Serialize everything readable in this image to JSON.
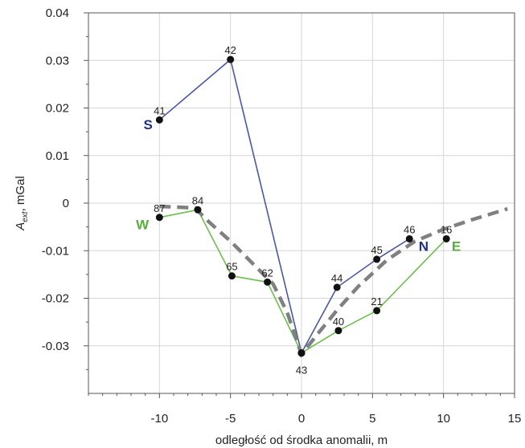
{
  "chart_data": {
    "type": "line",
    "xlabel": "odległość od środka anomalii,  m",
    "ylabel_main": "A",
    "ylabel_sub": "ext",
    "ylabel_unit": "mGal",
    "xlim": [
      -15,
      15
    ],
    "ylim": [
      -0.04,
      0.04
    ],
    "xticks": [
      -10,
      -5,
      0,
      5,
      10,
      15
    ],
    "xtick_labels": [
      "-10",
      "-5",
      "0",
      "5",
      "10",
      "15"
    ],
    "yticks": [
      0.04,
      0.03,
      0.02,
      0.01,
      0,
      -0.01,
      -0.02,
      -0.03
    ],
    "ytick_labels": [
      "0.04",
      "0.03",
      "0.02",
      "0.01",
      "0",
      "-0.01",
      "-0.02",
      "-0.03"
    ],
    "grid": true,
    "colors": {
      "sn": "#4a57a6",
      "we": "#6cbf4b",
      "model": "#808080",
      "S": "#22317f",
      "N": "#22317f",
      "W": "#5aad3c",
      "E": "#5aad3c"
    },
    "series": [
      {
        "id": "sn",
        "style": "solid",
        "points": [
          {
            "x": -10,
            "y": 0.0175,
            "label": "41"
          },
          {
            "x": -5,
            "y": 0.0302,
            "label": "42"
          },
          {
            "x": 0,
            "y": -0.0315,
            "label": "43"
          },
          {
            "x": 2.5,
            "y": -0.0177,
            "label": "44"
          },
          {
            "x": 5.3,
            "y": -0.0118,
            "label": "45"
          },
          {
            "x": 7.6,
            "y": -0.0075,
            "label": "46"
          }
        ]
      },
      {
        "id": "we",
        "style": "solid",
        "points": [
          {
            "x": -10,
            "y": -0.003,
            "label": "87"
          },
          {
            "x": -7.3,
            "y": -0.0014,
            "label": "84"
          },
          {
            "x": -4.9,
            "y": -0.0153,
            "label": "65"
          },
          {
            "x": -2.4,
            "y": -0.0166,
            "label": "62"
          },
          {
            "x": 0,
            "y": -0.0315,
            "label": ""
          },
          {
            "x": 2.6,
            "y": -0.0268,
            "label": "40"
          },
          {
            "x": 5.3,
            "y": -0.0226,
            "label": "21"
          },
          {
            "x": 10.2,
            "y": -0.0075,
            "label": "16"
          }
        ]
      },
      {
        "id": "model",
        "style": "dashed",
        "points": [
          {
            "x": -10,
            "y": -0.0007
          },
          {
            "x": -7.5,
            "y": -0.001
          },
          {
            "x": -6.5,
            "y": -0.004
          },
          {
            "x": -5,
            "y": -0.008
          },
          {
            "x": -3.5,
            "y": -0.0125
          },
          {
            "x": -2,
            "y": -0.017
          },
          {
            "x": -1,
            "y": -0.023
          },
          {
            "x": 0,
            "y": -0.0318
          },
          {
            "x": 1,
            "y": -0.028
          },
          {
            "x": 2.5,
            "y": -0.0225
          },
          {
            "x": 4,
            "y": -0.0175
          },
          {
            "x": 6,
            "y": -0.012
          },
          {
            "x": 8,
            "y": -0.008
          },
          {
            "x": 10,
            "y": -0.0055
          },
          {
            "x": 12,
            "y": -0.0035
          },
          {
            "x": 14.5,
            "y": -0.0012
          }
        ]
      }
    ],
    "direction_labels": [
      {
        "text": "S",
        "x": -10.8,
        "y": 0.0165,
        "color": "S"
      },
      {
        "text": "N",
        "x": 8.6,
        "y": -0.009,
        "color": "N"
      },
      {
        "text": "W",
        "x": -11.2,
        "y": -0.0045,
        "color": "W"
      },
      {
        "text": "E",
        "x": 10.9,
        "y": -0.009,
        "color": "E"
      }
    ]
  }
}
